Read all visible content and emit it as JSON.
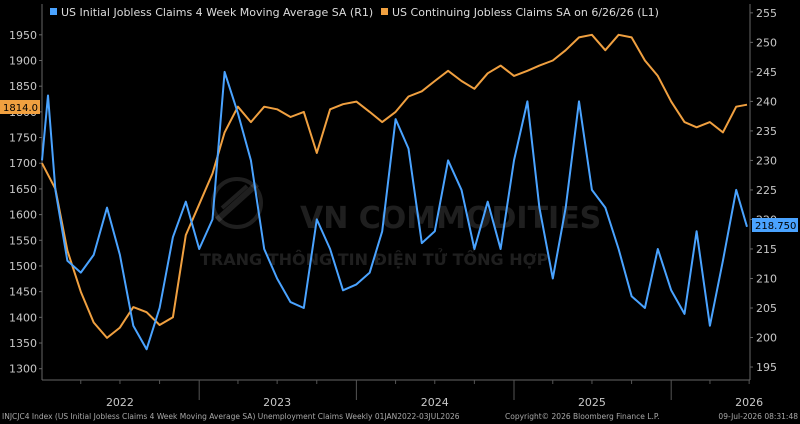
{
  "chart_data": {
    "type": "line",
    "legend": [
      {
        "label": "US Initial Jobless Claims 4 Week Moving Average SA  (R1)",
        "color": "#4aa3ff",
        "axis": "right"
      },
      {
        "label": "US Continuing Jobless Claims SA  on 6/26/26  (L1)",
        "color": "#f0a040",
        "axis": "left"
      }
    ],
    "left_axis": {
      "ticks": [
        1300,
        1350,
        1400,
        1450,
        1500,
        1550,
        1600,
        1650,
        1700,
        1750,
        1800,
        1850,
        1900,
        1950
      ],
      "ylim": [
        1278,
        2010
      ]
    },
    "right_axis": {
      "ticks": [
        195,
        200,
        205,
        210,
        215,
        220,
        225,
        230,
        235,
        240,
        245,
        250,
        255
      ],
      "ylim": [
        192.8,
        256.5
      ]
    },
    "x_labels": [
      "2022",
      "2023",
      "2024",
      "2025",
      "2026"
    ],
    "x_range": [
      "2022-01-01",
      "2026-07-03"
    ],
    "last_value_left": "1814.0",
    "last_value_right": "218.750",
    "series": [
      {
        "name": "US Continuing Jobless Claims SA",
        "axis": "left",
        "color": "#f0a040",
        "x": [
          "2022-01-01",
          "2022-02-01",
          "2022-03-01",
          "2022-04-01",
          "2022-05-01",
          "2022-06-01",
          "2022-07-01",
          "2022-08-01",
          "2022-09-01",
          "2022-10-01",
          "2022-11-01",
          "2022-12-01",
          "2023-01-01",
          "2023-02-01",
          "2023-03-01",
          "2023-04-01",
          "2023-05-01",
          "2023-06-01",
          "2023-07-01",
          "2023-08-01",
          "2023-09-01",
          "2023-10-01",
          "2023-11-01",
          "2023-12-01",
          "2024-01-01",
          "2024-02-01",
          "2024-03-01",
          "2024-04-01",
          "2024-05-01",
          "2024-06-01",
          "2024-07-01",
          "2024-08-01",
          "2024-09-01",
          "2024-10-01",
          "2024-11-01",
          "2024-12-01",
          "2025-01-01",
          "2025-02-01",
          "2025-03-01",
          "2025-04-01",
          "2025-05-01",
          "2025-06-01",
          "2025-07-01",
          "2025-08-01",
          "2025-09-01",
          "2025-10-01",
          "2025-11-01",
          "2025-12-01",
          "2026-01-01",
          "2026-02-01",
          "2026-03-01",
          "2026-04-01",
          "2026-05-01",
          "2026-06-01",
          "2026-06-26"
        ],
        "values": [
          1700,
          1650,
          1530,
          1450,
          1390,
          1360,
          1380,
          1420,
          1410,
          1385,
          1400,
          1560,
          1620,
          1680,
          1760,
          1810,
          1780,
          1810,
          1805,
          1790,
          1800,
          1720,
          1805,
          1815,
          1820,
          1800,
          1780,
          1800,
          1830,
          1840,
          1860,
          1880,
          1860,
          1845,
          1875,
          1890,
          1870,
          1880,
          1890,
          1900,
          1920,
          1945,
          1950,
          1920,
          1950,
          1945,
          1900,
          1870,
          1820,
          1780,
          1770,
          1780,
          1760,
          1810,
          1814
        ]
      },
      {
        "name": "US Initial Jobless Claims 4 Week Moving Average SA",
        "axis": "right",
        "color": "#4aa3ff",
        "x": [
          "2022-01-01",
          "2022-01-15",
          "2022-02-01",
          "2022-03-01",
          "2022-04-01",
          "2022-05-01",
          "2022-06-01",
          "2022-07-01",
          "2022-08-01",
          "2022-09-01",
          "2022-10-01",
          "2022-11-01",
          "2022-12-01",
          "2023-01-01",
          "2023-02-01",
          "2023-03-01",
          "2023-04-01",
          "2023-05-01",
          "2023-06-01",
          "2023-07-01",
          "2023-08-01",
          "2023-09-01",
          "2023-10-01",
          "2023-11-01",
          "2023-12-01",
          "2024-01-01",
          "2024-02-01",
          "2024-03-01",
          "2024-04-01",
          "2024-05-01",
          "2024-06-01",
          "2024-07-01",
          "2024-08-01",
          "2024-09-01",
          "2024-10-01",
          "2024-11-01",
          "2024-12-01",
          "2025-01-01",
          "2025-02-01",
          "2025-03-01",
          "2025-04-01",
          "2025-05-01",
          "2025-06-01",
          "2025-07-01",
          "2025-08-01",
          "2025-09-01",
          "2025-10-01",
          "2025-11-01",
          "2025-12-01",
          "2026-01-01",
          "2026-02-01",
          "2026-03-01",
          "2026-04-01",
          "2026-05-01",
          "2026-06-01",
          "2026-06-26"
        ],
        "values": [
          230,
          241,
          225,
          213,
          211,
          214,
          222,
          214,
          202,
          198,
          205,
          217,
          223,
          215,
          220,
          245,
          238,
          230,
          215,
          210,
          206,
          205,
          220,
          215,
          208,
          209,
          211,
          218,
          237,
          232,
          216,
          218,
          230,
          225,
          215,
          223,
          215,
          230,
          240,
          222,
          210,
          222,
          240,
          225,
          222,
          215,
          207,
          205,
          215,
          208,
          204,
          218,
          202,
          213,
          225,
          218.75
        ]
      }
    ]
  },
  "watermark": {
    "name": "VN COMMODITIES",
    "subtitle": "TRANG THÔNG TIN ĐIỆN TỬ TỔNG HỢP"
  },
  "footer": {
    "left": "INJCJC4 Index (US Initial Jobless Claims 4 Week Moving Average SA) Unemployment Claims Weekly 01JAN2022-03JUL2026",
    "center": "Copyright© 2026 Bloomberg Finance L.P.",
    "right": "09-Jul-2026 08:31:48"
  }
}
